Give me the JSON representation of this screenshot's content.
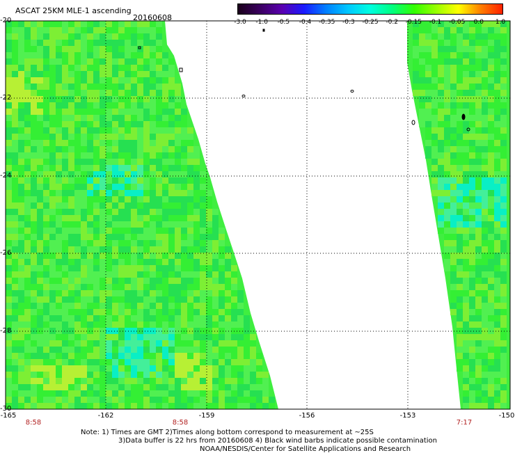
{
  "header": {
    "title": "ASCAT 25KM MLE-1 ascending",
    "date": "20160608"
  },
  "colorbar": {
    "ticks": [
      "-3.0",
      "-1.0",
      "-0.5",
      "-0.4",
      "-0.35",
      "-0.3",
      "-0.25",
      "-0.2",
      "-0.15",
      "-0.1",
      "-0.05",
      "0.0",
      "1.0"
    ],
    "colors": [
      "#1a001a",
      "#3a0060",
      "#5a00b0",
      "#1a1aff",
      "#0080ff",
      "#00c8ff",
      "#00ffe0",
      "#00ff80",
      "#33ff00",
      "#99ff00",
      "#ffff00",
      "#ff8000",
      "#ff2000"
    ]
  },
  "map": {
    "lon_labels": [
      "-165",
      "-162",
      "-159",
      "-156",
      "-153",
      "-150"
    ],
    "lat_labels": [
      "-20",
      "-22",
      "-24",
      "-26",
      "-28",
      "-30"
    ],
    "time_labels": [
      "8:58",
      "8:58",
      "7:17"
    ],
    "swath_fill_colors": [
      "#33ee33",
      "#55f055",
      "#22dd55",
      "#88ee33",
      "#44eeaa",
      "#00eedd",
      "#ccf033",
      "#66ff33"
    ]
  },
  "footer": {
    "note1": "Note: 1) Times are GMT 2)Times along bottom correspond to measurement at ~25S",
    "note2": "3)Data buffer is 22 hrs from 20160608 4) Black wind barbs indicate possible contamination",
    "note3": "NOAA/NESDIS/Center for Satellite Applications and Research"
  }
}
